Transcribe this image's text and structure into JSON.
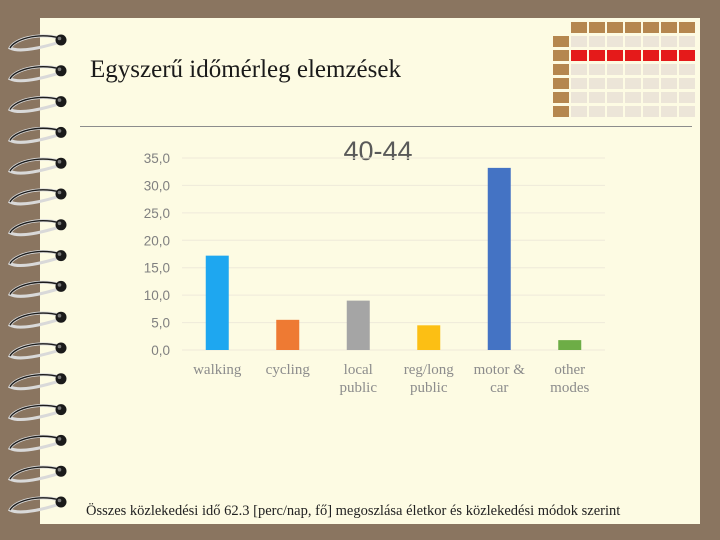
{
  "slide": {
    "title": "Egyszerű időmérleg elemzések",
    "caption": "Összes közlekedési idő 62.3 [perc/nap, fő] megoszlása életkor és közlekedési módok szerint"
  },
  "colors": {
    "background": "#8a7560",
    "page": "#fdfbe3",
    "deco_brown": "#b5874f",
    "deco_red": "#e51a1a",
    "deco_light": "#ece5d8"
  },
  "chart_data": {
    "type": "bar",
    "title": "40-44",
    "categories": [
      [
        "walking"
      ],
      [
        "cycling"
      ],
      [
        "local",
        "public"
      ],
      [
        "reg/long",
        "public"
      ],
      [
        "motor &",
        "car"
      ],
      [
        "other",
        "modes"
      ]
    ],
    "values": [
      17.2,
      5.5,
      9.0,
      4.5,
      33.2,
      1.8
    ],
    "colors": [
      "#1ea7f0",
      "#ee7a33",
      "#a5a5a5",
      "#fcbf14",
      "#4473c4",
      "#6dad46"
    ],
    "y_ticks": [
      "0,0",
      "5,0",
      "10,0",
      "15,0",
      "20,0",
      "25,0",
      "30,0",
      "35,0"
    ],
    "ylim": [
      0,
      35
    ],
    "grid": true
  }
}
